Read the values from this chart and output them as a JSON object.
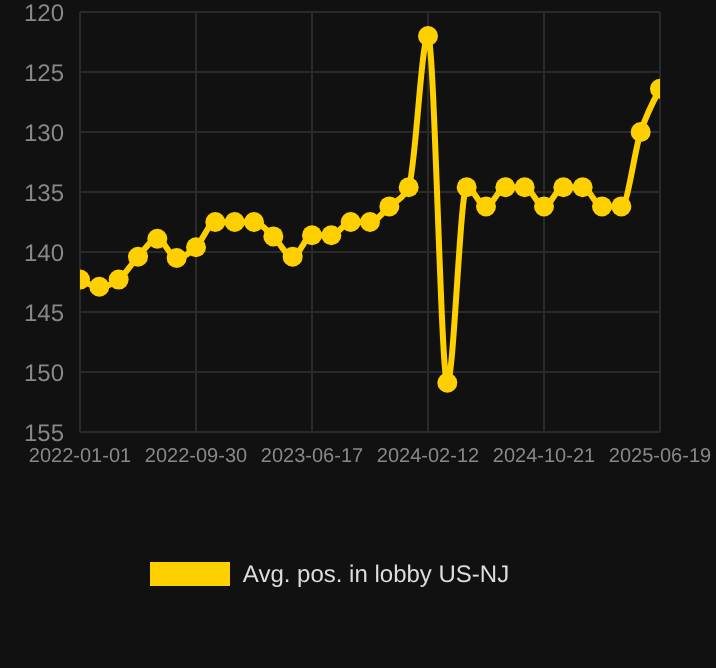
{
  "chart_data": {
    "type": "line",
    "categories": [
      "2022-01-01",
      null,
      null,
      null,
      null,
      null,
      "2022-09-30",
      null,
      null,
      null,
      null,
      null,
      "2023-06-17",
      null,
      null,
      null,
      null,
      null,
      "2024-02-12",
      null,
      null,
      null,
      null,
      null,
      "2024-10-21",
      null,
      null,
      null,
      null,
      null,
      "2025-06-19"
    ],
    "series": [
      {
        "name": "Avg. pos. in lobby US-NJ",
        "color": "#ffd000",
        "values": [
          142.3,
          142.9,
          142.3,
          140.4,
          138.9,
          140.5,
          139.6,
          137.5,
          137.5,
          137.5,
          138.7,
          140.4,
          138.6,
          138.6,
          137.5,
          137.5,
          136.2,
          134.6,
          122,
          150.9,
          134.6,
          136.2,
          134.6,
          134.6,
          136.2,
          134.6,
          134.6,
          136.2,
          136.2,
          130,
          126.4
        ]
      }
    ],
    "ylim": [
      155,
      120
    ],
    "yticks": [
      120,
      125,
      130,
      135,
      140,
      145,
      150,
      155
    ],
    "grid": true,
    "legend": "bottom",
    "marker": "circle",
    "line_style": "solid"
  }
}
